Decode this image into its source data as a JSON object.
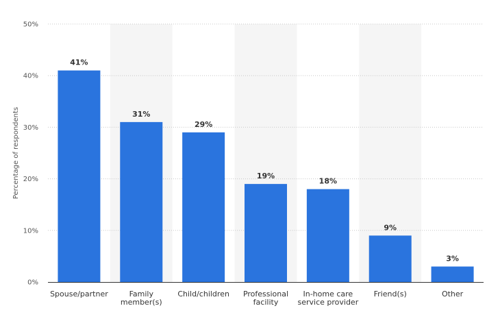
{
  "chart_data": {
    "type": "bar",
    "categories": [
      "Spouse/partner",
      "Family member(s)",
      "Child/children",
      "Professional facility",
      "In-home care service provider",
      "Friend(s)",
      "Other"
    ],
    "category_lines": [
      [
        "Spouse/partner"
      ],
      [
        "Family",
        "member(s)"
      ],
      [
        "Child/children"
      ],
      [
        "Professional",
        "facility"
      ],
      [
        "In-home care",
        "service provider"
      ],
      [
        "Friend(s)"
      ],
      [
        "Other"
      ]
    ],
    "values": [
      41,
      31,
      29,
      19,
      18,
      9,
      3
    ],
    "value_labels": [
      "41%",
      "31%",
      "29%",
      "19%",
      "18%",
      "9%",
      "3%"
    ],
    "title": "",
    "xlabel": "",
    "ylabel": "Percentage of respondents",
    "ylim": [
      0,
      50
    ],
    "yticks": [
      0,
      10,
      20,
      30,
      40,
      50
    ],
    "ytick_labels": [
      "0%",
      "10%",
      "20%",
      "30%",
      "40%",
      "50%"
    ],
    "grid": true,
    "colors": {
      "bar": "#2a74de",
      "band": "#f5f5f5",
      "grid": "#c8c8c8",
      "axis": "#333333"
    }
  }
}
